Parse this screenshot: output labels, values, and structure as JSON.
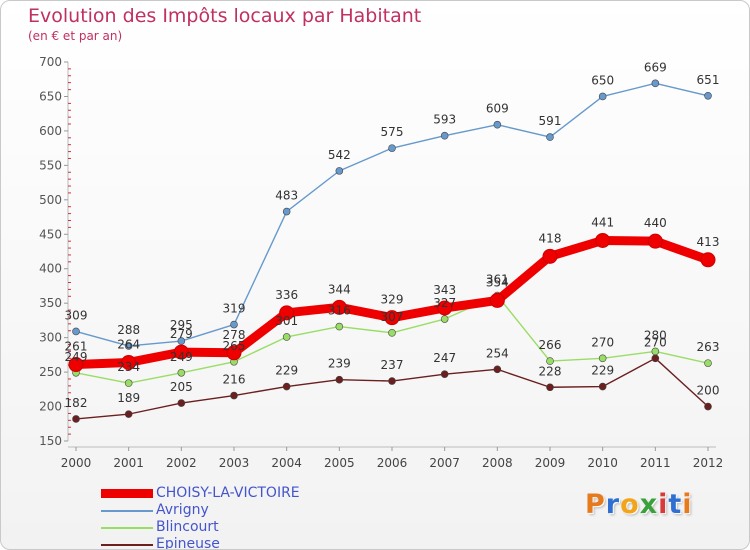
{
  "title": "Evolution des Impôts locaux par Habitant",
  "subtitle": "(en € et par an)",
  "logo": {
    "text": "Proxiti",
    "letters": [
      "P",
      "r",
      "o",
      "x",
      "i",
      "t",
      "i"
    ],
    "colors": [
      "#e87a1e",
      "#2e6fd1",
      "#f2a41a",
      "#3aa03a",
      "#d63a3a",
      "#2e6fd1",
      "#e87a1e"
    ]
  },
  "chart_data": {
    "type": "line",
    "x": [
      2000,
      2001,
      2002,
      2003,
      2004,
      2005,
      2006,
      2007,
      2008,
      2009,
      2010,
      2011,
      2012
    ],
    "ylim": [
      150,
      700
    ],
    "yticks": [
      150,
      200,
      250,
      300,
      350,
      400,
      450,
      500,
      550,
      600,
      650,
      700
    ],
    "grid": false,
    "legend": "bottom-left",
    "series": [
      {
        "name": "CHOISY-LA-VICTOIRE",
        "color": "#ee0000",
        "values": [
          261,
          264,
          279,
          278,
          336,
          344,
          329,
          343,
          354,
          418,
          441,
          440,
          413
        ]
      },
      {
        "name": "Avrigny",
        "color": "#6699cc",
        "values": [
          309,
          288,
          295,
          319,
          483,
          542,
          575,
          593,
          609,
          591,
          650,
          669,
          651
        ]
      },
      {
        "name": "Blincourt",
        "color": "#99dd66",
        "values": [
          249,
          234,
          249,
          265,
          301,
          316,
          307,
          327,
          361,
          266,
          270,
          280,
          263
        ]
      },
      {
        "name": "Epineuse",
        "color": "#6b1f1f",
        "values": [
          182,
          189,
          205,
          216,
          229,
          239,
          237,
          247,
          254,
          228,
          229,
          270,
          200
        ]
      }
    ]
  }
}
